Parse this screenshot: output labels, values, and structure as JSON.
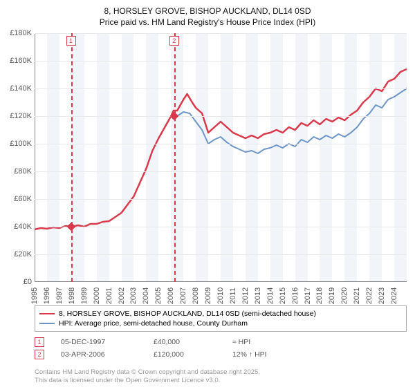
{
  "title_line1": "8, HORSLEY GROVE, BISHOP AUCKLAND, DL14 0SD",
  "title_line2": "Price paid vs. HM Land Registry's House Price Index (HPI)",
  "chart": {
    "type": "line",
    "background_color": "#ffffff",
    "alt_band_color": "#dce7f2",
    "alt_band_opacity": 0.4,
    "grid_color": "#e8e8e8",
    "axis_color": "#888888",
    "label_color": "#555555",
    "label_fontsize": 11,
    "x_min": 1995,
    "x_max": 2025,
    "y_min": 0,
    "y_max": 180000,
    "y_tick_step": 20000,
    "y_ticks": [
      "£0",
      "£20K",
      "£40K",
      "£60K",
      "£80K",
      "£100K",
      "£120K",
      "£140K",
      "£160K",
      "£180K"
    ],
    "x_ticks": [
      1995,
      1996,
      1997,
      1998,
      1999,
      2000,
      2001,
      2002,
      2003,
      2004,
      2005,
      2006,
      2007,
      2008,
      2009,
      2010,
      2011,
      2012,
      2013,
      2014,
      2015,
      2016,
      2017,
      2018,
      2019,
      2020,
      2021,
      2022,
      2023,
      2024
    ],
    "series": [
      {
        "name": "property",
        "label": "8, HORSLEY GROVE, BISHOP AUCKLAND, DL14 0SD (semi-detached house)",
        "color": "#d9394a",
        "line_width": 2.5,
        "data": [
          [
            1995,
            38000
          ],
          [
            1995.5,
            39000
          ],
          [
            1996,
            38500
          ],
          [
            1996.5,
            39500
          ],
          [
            1997,
            39000
          ],
          [
            1997.5,
            40500
          ],
          [
            1998,
            40000
          ],
          [
            1998.5,
            41000
          ],
          [
            1999,
            40000
          ],
          [
            1999.5,
            42000
          ],
          [
            2000,
            42000
          ],
          [
            2000.5,
            43500
          ],
          [
            2001,
            44000
          ],
          [
            2001.5,
            47000
          ],
          [
            2002,
            50000
          ],
          [
            2002.5,
            56000
          ],
          [
            2003,
            62000
          ],
          [
            2003.5,
            72000
          ],
          [
            2004,
            82000
          ],
          [
            2004.5,
            95000
          ],
          [
            2005,
            104000
          ],
          [
            2005.5,
            112000
          ],
          [
            2006,
            120000
          ],
          [
            2006.2,
            124000
          ],
          [
            2006.5,
            124000
          ],
          [
            2007,
            132000
          ],
          [
            2007.3,
            136000
          ],
          [
            2007.7,
            130000
          ],
          [
            2008,
            126000
          ],
          [
            2008.5,
            122000
          ],
          [
            2009,
            108000
          ],
          [
            2009.5,
            112000
          ],
          [
            2010,
            116000
          ],
          [
            2010.5,
            112000
          ],
          [
            2011,
            108000
          ],
          [
            2011.5,
            106000
          ],
          [
            2012,
            104000
          ],
          [
            2012.5,
            106000
          ],
          [
            2013,
            104000
          ],
          [
            2013.5,
            107000
          ],
          [
            2014,
            108000
          ],
          [
            2014.5,
            110000
          ],
          [
            2015,
            108000
          ],
          [
            2015.5,
            112000
          ],
          [
            2016,
            110000
          ],
          [
            2016.5,
            115000
          ],
          [
            2017,
            113000
          ],
          [
            2017.5,
            117000
          ],
          [
            2018,
            114000
          ],
          [
            2018.5,
            118000
          ],
          [
            2019,
            116000
          ],
          [
            2019.5,
            119000
          ],
          [
            2020,
            117000
          ],
          [
            2020.5,
            121000
          ],
          [
            2021,
            124000
          ],
          [
            2021.5,
            130000
          ],
          [
            2022,
            134000
          ],
          [
            2022.5,
            140000
          ],
          [
            2023,
            138000
          ],
          [
            2023.5,
            145000
          ],
          [
            2024,
            147000
          ],
          [
            2024.5,
            152000
          ],
          [
            2025,
            154000
          ]
        ]
      },
      {
        "name": "hpi",
        "label": "HPI: Average price, semi-detached house, County Durham",
        "color": "#6d95c8",
        "line_width": 2,
        "data": [
          [
            2006,
            120000
          ],
          [
            2006.5,
            120000
          ],
          [
            2007,
            123000
          ],
          [
            2007.5,
            122000
          ],
          [
            2008,
            116000
          ],
          [
            2008.5,
            110000
          ],
          [
            2009,
            100000
          ],
          [
            2009.5,
            103000
          ],
          [
            2010,
            105000
          ],
          [
            2010.5,
            101000
          ],
          [
            2011,
            98000
          ],
          [
            2011.5,
            96000
          ],
          [
            2012,
            94000
          ],
          [
            2012.5,
            95000
          ],
          [
            2013,
            93000
          ],
          [
            2013.5,
            96000
          ],
          [
            2014,
            97000
          ],
          [
            2014.5,
            99000
          ],
          [
            2015,
            97000
          ],
          [
            2015.5,
            100000
          ],
          [
            2016,
            98000
          ],
          [
            2016.5,
            103000
          ],
          [
            2017,
            101000
          ],
          [
            2017.5,
            105000
          ],
          [
            2018,
            103000
          ],
          [
            2018.5,
            106000
          ],
          [
            2019,
            104000
          ],
          [
            2019.5,
            107000
          ],
          [
            2020,
            105000
          ],
          [
            2020.5,
            108000
          ],
          [
            2021,
            112000
          ],
          [
            2021.5,
            118000
          ],
          [
            2022,
            122000
          ],
          [
            2022.5,
            128000
          ],
          [
            2023,
            126000
          ],
          [
            2023.5,
            132000
          ],
          [
            2024,
            134000
          ],
          [
            2024.5,
            137000
          ],
          [
            2025,
            140000
          ]
        ]
      }
    ],
    "references": [
      {
        "idx": "1",
        "x": 1997.93
      },
      {
        "idx": "2",
        "x": 2006.26
      }
    ],
    "ref_markers": [
      {
        "x": 1997.93,
        "y": 40000
      },
      {
        "x": 2006.26,
        "y": 120000
      }
    ]
  },
  "sales": [
    {
      "idx": "1",
      "date": "05-DEC-1997",
      "price": "£40,000",
      "hpi": "≈ HPI"
    },
    {
      "idx": "2",
      "date": "03-APR-2006",
      "price": "£120,000",
      "hpi": "12% ↑ HPI"
    }
  ],
  "footnote_line1": "Contains HM Land Registry data © Crown copyright and database right 2025.",
  "footnote_line2": "This data is licensed under the Open Government Licence v3.0."
}
